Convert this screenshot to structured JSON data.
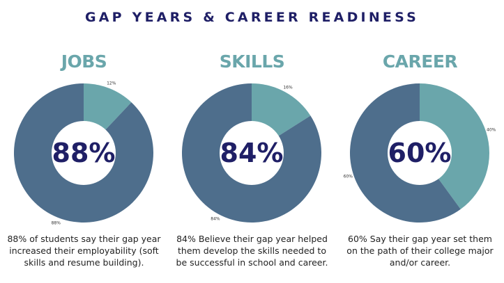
{
  "header": {
    "title": "GAP YEARS & CAREER READINESS"
  },
  "colors": {
    "dark_slice": "#4e6e8c",
    "light_slice": "#6aa6ab",
    "hole": "#ffffff",
    "title": "#1f1f66",
    "heading": "#6aa6ab"
  },
  "chart_data": [
    {
      "type": "pie",
      "title": "JOBS",
      "center_label": "88%",
      "slices": [
        {
          "label": "12%",
          "value": 12,
          "color": "#6aa6ab"
        },
        {
          "label": "88%",
          "value": 88,
          "color": "#4e6e8c"
        }
      ],
      "caption": "88% of students say their gap year increased their employability (soft skills and resume building)."
    },
    {
      "type": "pie",
      "title": "SKILLS",
      "center_label": "84%",
      "slices": [
        {
          "label": "16%",
          "value": 16,
          "color": "#6aa6ab"
        },
        {
          "label": "84%",
          "value": 84,
          "color": "#4e6e8c"
        }
      ],
      "caption": "84% Believe their gap year helped them develop the skills needed to be successful in school and career."
    },
    {
      "type": "pie",
      "title": "CAREER",
      "center_label": "60%",
      "slices": [
        {
          "label": "40%",
          "value": 40,
          "color": "#6aa6ab"
        },
        {
          "label": "60%",
          "value": 60,
          "color": "#4e6e8c"
        }
      ],
      "caption": "60% Say their gap year set them on the path of their college major and/or career."
    }
  ]
}
